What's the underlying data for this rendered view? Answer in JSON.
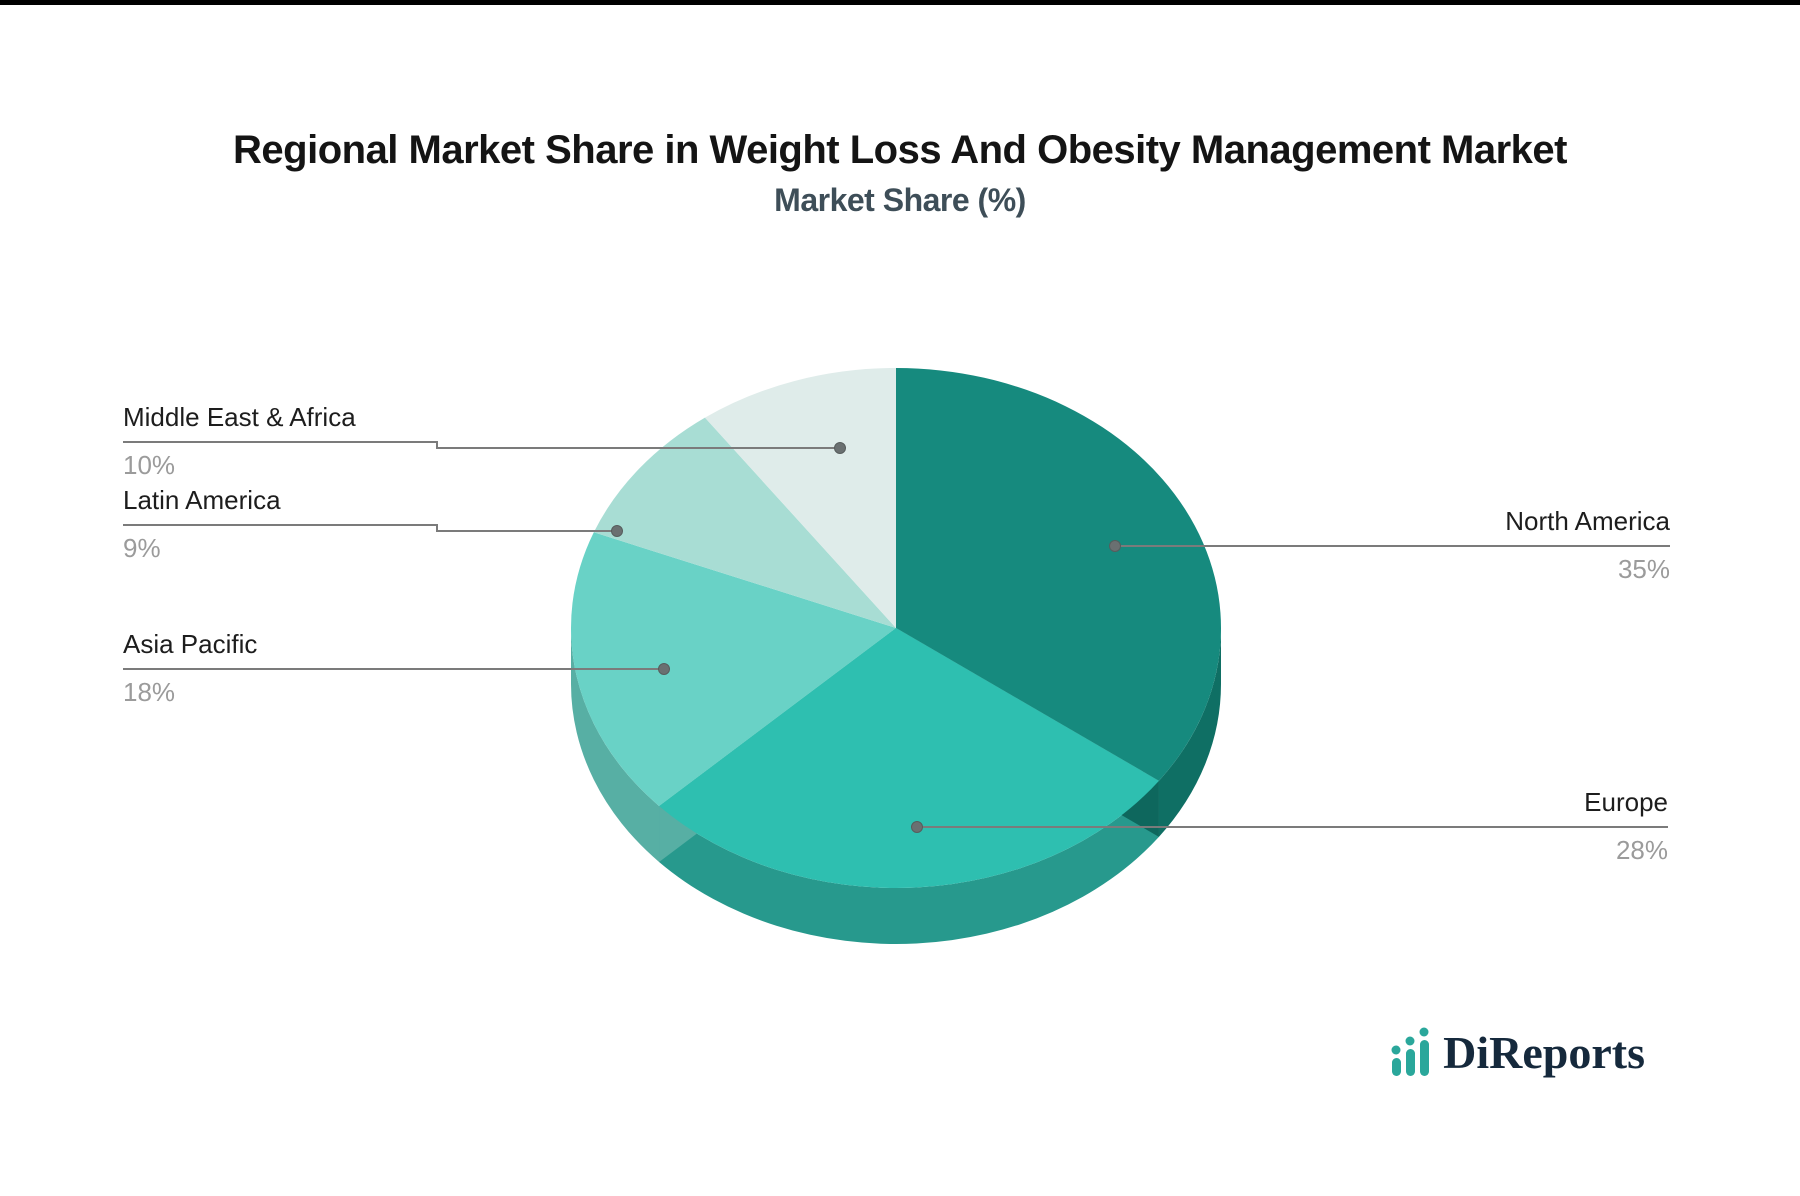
{
  "page": {
    "background": "#FFFFFF",
    "top_border_color": "#000000"
  },
  "header": {
    "title": "Regional Market Share in Weight Loss And Obesity Management Market",
    "subtitle": "Market Share (%)"
  },
  "chart_data": {
    "type": "pie",
    "title": "Regional Market Share in Weight Loss And Obesity Management Market",
    "subtitle": "Market Share (%)",
    "unit": "%",
    "is_3d": true,
    "start_angle": "top",
    "direction": "clockwise",
    "legend_position": "none",
    "labels": "leader-lines",
    "slices": [
      {
        "label": "North America",
        "value": 35,
        "value_label": "35%",
        "color": "#168A7E",
        "rim_color": "#0F6F64",
        "label_side": "right"
      },
      {
        "label": "Europe",
        "value": 28,
        "value_label": "28%",
        "color": "#2EBFB0",
        "rim_color": "#27998D",
        "label_side": "right"
      },
      {
        "label": "Asia Pacific",
        "value": 18,
        "value_label": "18%",
        "color": "#69D2C6",
        "rim_color": "#57AFA4",
        "label_side": "left"
      },
      {
        "label": "Latin America",
        "value": 9,
        "value_label": "9%",
        "color": "#A8DDD4",
        "rim_color": "#8FC7BE",
        "label_side": "left"
      },
      {
        "label": "Middle East & Africa",
        "value": 10,
        "value_label": "10%",
        "color": "#DFECEA",
        "rim_color": "#C3D8D4",
        "label_side": "left"
      }
    ],
    "label_text_color": "#1D1D1D",
    "value_text_color": "#9B9B9B",
    "leader_line_color": "#7B7B7B",
    "leader_dot_color": "#6A7071"
  },
  "branding": {
    "logo_text": "DiReports",
    "logo_icon": "bar-chart-icon",
    "logo_text_color": "#15293C",
    "logo_icon_color": "#2AA79B"
  }
}
